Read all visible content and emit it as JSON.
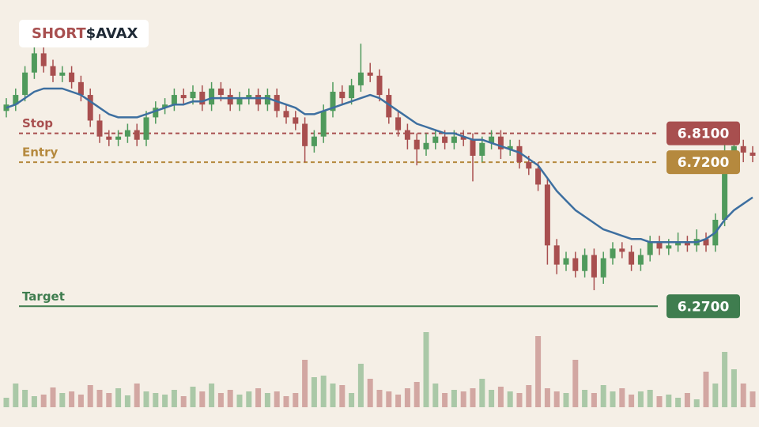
{
  "chart_data": {
    "type": "candlestick",
    "title_side": "SHORT",
    "title_ticker": "$AVAX",
    "ylim": [
      6.2,
      7.15
    ],
    "vlim": [
      0,
      100
    ],
    "up_color": "#4f9a5c",
    "down_color": "#a84f4f",
    "ma_color": "#3d6fa0",
    "open": [
      6.88,
      6.9,
      6.93,
      7.0,
      7.06,
      7.02,
      6.99,
      7.0,
      6.97,
      6.93,
      6.85,
      6.8,
      6.79,
      6.8,
      6.82,
      6.79,
      6.86,
      6.89,
      6.9,
      6.93,
      6.92,
      6.94,
      6.9,
      6.95,
      6.93,
      6.9,
      6.92,
      6.93,
      6.9,
      6.93,
      6.88,
      6.86,
      6.84,
      6.77,
      6.8,
      6.88,
      6.94,
      6.92,
      6.96,
      7.0,
      6.99,
      6.93,
      6.86,
      6.82,
      6.79,
      6.76,
      6.78,
      6.8,
      6.78,
      6.8,
      6.79,
      6.74,
      6.78,
      6.8,
      6.76,
      6.77,
      6.72,
      6.7,
      6.65,
      6.46,
      6.4,
      6.42,
      6.38,
      6.43,
      6.36,
      6.42,
      6.45,
      6.44,
      6.4,
      6.43,
      6.47,
      6.45,
      6.46,
      6.47,
      6.46,
      6.48,
      6.46,
      6.54,
      6.75,
      6.77,
      6.75
    ],
    "high": [
      6.92,
      6.95,
      7.02,
      7.09,
      7.08,
      7.04,
      7.02,
      7.02,
      6.99,
      6.95,
      6.87,
      6.82,
      6.82,
      6.84,
      6.84,
      6.88,
      6.91,
      6.92,
      6.95,
      6.95,
      6.96,
      6.96,
      6.97,
      6.97,
      6.95,
      6.94,
      6.95,
      6.95,
      6.95,
      6.95,
      6.9,
      6.88,
      6.86,
      6.82,
      6.9,
      6.97,
      6.96,
      6.98,
      7.09,
      7.03,
      7.01,
      6.95,
      6.88,
      6.84,
      6.81,
      6.81,
      6.82,
      6.82,
      6.82,
      6.82,
      6.81,
      6.8,
      6.82,
      6.82,
      6.79,
      6.79,
      6.74,
      6.72,
      6.67,
      6.48,
      6.44,
      6.44,
      6.45,
      6.45,
      6.44,
      6.47,
      6.47,
      6.46,
      6.45,
      6.49,
      6.49,
      6.48,
      6.5,
      6.49,
      6.51,
      6.5,
      6.56,
      6.78,
      6.8,
      6.79,
      6.77
    ],
    "low": [
      6.86,
      6.88,
      6.91,
      6.98,
      7.0,
      6.97,
      6.97,
      6.95,
      6.91,
      6.83,
      6.78,
      6.77,
      6.77,
      6.78,
      6.77,
      6.77,
      6.84,
      6.87,
      6.88,
      6.9,
      6.9,
      6.88,
      6.88,
      6.91,
      6.88,
      6.88,
      6.9,
      6.88,
      6.88,
      6.86,
      6.84,
      6.82,
      6.72,
      6.75,
      6.78,
      6.86,
      6.9,
      6.9,
      6.94,
      6.97,
      6.91,
      6.84,
      6.8,
      6.76,
      6.71,
      6.74,
      6.76,
      6.76,
      6.76,
      6.77,
      6.66,
      6.72,
      6.76,
      6.73,
      6.74,
      6.7,
      6.68,
      6.63,
      6.4,
      6.37,
      6.38,
      6.36,
      6.36,
      6.32,
      6.34,
      6.4,
      6.42,
      6.38,
      6.38,
      6.41,
      6.43,
      6.43,
      6.44,
      6.44,
      6.44,
      6.44,
      6.44,
      6.52,
      6.73,
      6.72,
      6.72
    ],
    "close": [
      6.9,
      6.93,
      7.0,
      7.06,
      7.02,
      6.99,
      7.0,
      6.97,
      6.93,
      6.85,
      6.8,
      6.79,
      6.8,
      6.82,
      6.79,
      6.86,
      6.89,
      6.9,
      6.93,
      6.92,
      6.94,
      6.9,
      6.95,
      6.93,
      6.9,
      6.92,
      6.93,
      6.9,
      6.93,
      6.88,
      6.86,
      6.84,
      6.77,
      6.8,
      6.88,
      6.94,
      6.92,
      6.96,
      7.0,
      6.99,
      6.93,
      6.86,
      6.82,
      6.79,
      6.76,
      6.78,
      6.8,
      6.78,
      6.8,
      6.79,
      6.74,
      6.78,
      6.8,
      6.76,
      6.77,
      6.72,
      6.7,
      6.65,
      6.46,
      6.4,
      6.42,
      6.38,
      6.43,
      6.36,
      6.42,
      6.45,
      6.44,
      6.4,
      6.43,
      6.47,
      6.45,
      6.46,
      6.47,
      6.46,
      6.48,
      6.46,
      6.54,
      6.75,
      6.77,
      6.75,
      6.74
    ],
    "volume": [
      12,
      30,
      22,
      14,
      16,
      25,
      18,
      20,
      16,
      28,
      22,
      18,
      24,
      15,
      30,
      20,
      18,
      16,
      22,
      14,
      26,
      20,
      30,
      18,
      22,
      16,
      20,
      24,
      18,
      20,
      14,
      18,
      60,
      38,
      40,
      30,
      28,
      18,
      55,
      36,
      22,
      20,
      16,
      24,
      32,
      95,
      30,
      18,
      22,
      20,
      24,
      36,
      22,
      26,
      20,
      18,
      28,
      90,
      24,
      20,
      18,
      60,
      22,
      18,
      28,
      20,
      24,
      16,
      20,
      22,
      14,
      16,
      12,
      18,
      10,
      45,
      30,
      70,
      48,
      30,
      20
    ],
    "ma": [
      6.89,
      6.9,
      6.92,
      6.94,
      6.95,
      6.95,
      6.95,
      6.94,
      6.93,
      6.91,
      6.89,
      6.87,
      6.86,
      6.86,
      6.86,
      6.87,
      6.88,
      6.89,
      6.9,
      6.9,
      6.91,
      6.91,
      6.92,
      6.92,
      6.92,
      6.92,
      6.92,
      6.92,
      6.92,
      6.91,
      6.9,
      6.89,
      6.87,
      6.87,
      6.88,
      6.89,
      6.9,
      6.91,
      6.92,
      6.93,
      6.92,
      6.9,
      6.88,
      6.86,
      6.84,
      6.83,
      6.82,
      6.81,
      6.81,
      6.8,
      6.79,
      6.79,
      6.78,
      6.77,
      6.76,
      6.75,
      6.73,
      6.71,
      6.67,
      6.63,
      6.6,
      6.57,
      6.55,
      6.53,
      6.51,
      6.5,
      6.49,
      6.48,
      6.48,
      6.47,
      6.47,
      6.47,
      6.47,
      6.47,
      6.47,
      6.48,
      6.5,
      6.54,
      6.57,
      6.59,
      6.61
    ],
    "levels": [
      {
        "name": "Stop",
        "value": 6.81,
        "label": "6.8100",
        "color": "#a84f4f",
        "style": "dashed"
      },
      {
        "name": "Entry",
        "value": 6.72,
        "label": "6.7200",
        "color": "#b5893e",
        "style": "dashed"
      },
      {
        "name": "Target",
        "value": 6.27,
        "label": "6.2700",
        "color": "#3f7d4f",
        "style": "solid"
      }
    ]
  }
}
